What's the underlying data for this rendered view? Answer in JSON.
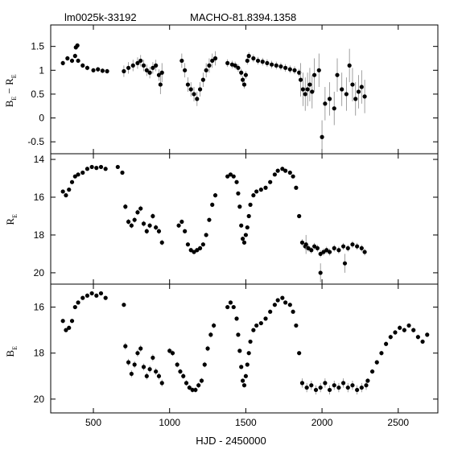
{
  "header": {
    "left_id": "lm0025k-33192",
    "right_id": "MACHO-81.8394.1358"
  },
  "chart_data": [
    {
      "type": "scatter",
      "panel": "color",
      "ylabel_main": "B",
      "ylabel_sub": "E",
      "ylabel_mid": " − R",
      "ylabel_sub2": "E",
      "xlim": [
        220,
        2760
      ],
      "ylim": [
        -0.75,
        1.95
      ],
      "inverted": false,
      "yticks": [
        -0.5,
        0,
        0.5,
        1,
        1.5
      ],
      "ytick_labels": [
        "-0.5",
        "0",
        "0.5",
        "1",
        "1.5"
      ],
      "segments": [
        {
          "x": [
            300,
            330,
            360,
            380,
            400,
            430,
            460,
            500,
            530,
            560,
            590
          ],
          "y": [
            1.15,
            1.25,
            1.2,
            1.3,
            1.2,
            1.1,
            1.05,
            1.0,
            1.02,
            0.99,
            0.98
          ],
          "err": 0.05
        },
        {
          "x": [
            385,
            395
          ],
          "y": [
            1.48,
            1.52
          ],
          "err": 0.04
        },
        {
          "x": [
            700,
            730,
            760,
            790,
            810,
            830,
            850,
            870,
            890,
            910,
            930
          ],
          "y": [
            0.98,
            1.05,
            1.1,
            1.15,
            1.2,
            1.1,
            1.0,
            0.95,
            1.05,
            1.1,
            0.9
          ],
          "err": 0.12
        },
        {
          "x": [
            940,
            950
          ],
          "y": [
            0.7,
            0.95
          ],
          "err": 0.2
        },
        {
          "x": [
            1080,
            1100,
            1120,
            1140,
            1160,
            1180,
            1200,
            1220,
            1240,
            1260,
            1280,
            1300
          ],
          "y": [
            1.2,
            1.0,
            0.7,
            0.6,
            0.5,
            0.4,
            0.6,
            0.8,
            1.0,
            1.1,
            1.2,
            1.25
          ],
          "err": 0.15
        },
        {
          "x": [
            1380,
            1410,
            1430,
            1450,
            1470,
            1480,
            1490,
            1500,
            1510,
            1520,
            1550,
            1580,
            1610,
            1640,
            1670,
            1700,
            1730,
            1760,
            1790,
            1820,
            1850
          ],
          "y": [
            1.15,
            1.12,
            1.1,
            1.05,
            0.95,
            0.8,
            0.7,
            0.9,
            1.2,
            1.3,
            1.25,
            1.2,
            1.18,
            1.15,
            1.12,
            1.1,
            1.08,
            1.05,
            1.02,
            1.0,
            0.95
          ],
          "err": 0.08
        },
        {
          "x": [
            1860,
            1875,
            1890,
            1905,
            1920,
            1935,
            1950,
            1980,
            2000,
            2020,
            2050,
            2080,
            2100,
            2130,
            2160,
            2180,
            2200,
            2220,
            2240,
            2260,
            2280
          ],
          "y": [
            0.8,
            0.6,
            0.5,
            0.6,
            0.7,
            0.55,
            0.9,
            1.0,
            -0.4,
            0.3,
            0.4,
            0.2,
            0.9,
            0.6,
            0.5,
            1.1,
            0.7,
            0.4,
            0.55,
            0.65,
            0.45
          ],
          "err": 0.35
        }
      ]
    },
    {
      "type": "scatter",
      "panel": "R",
      "ylabel_main": "R",
      "ylabel_sub": "E",
      "xlim": [
        220,
        2760
      ],
      "ylim": [
        13.7,
        20.6
      ],
      "inverted": true,
      "yticks": [
        14,
        16,
        18,
        20
      ],
      "ytick_labels": [
        "14",
        "16",
        "18",
        "20"
      ],
      "segments": [
        {
          "x": [
            300,
            320,
            340,
            360,
            380,
            400,
            430,
            460,
            490,
            520,
            550,
            580
          ],
          "y": [
            15.7,
            15.9,
            15.6,
            15.2,
            14.9,
            14.8,
            14.7,
            14.5,
            14.4,
            14.45,
            14.4,
            14.5
          ],
          "err": 0.08
        },
        {
          "x": [
            660,
            690
          ],
          "y": [
            14.4,
            14.7
          ],
          "err": 0.08
        },
        {
          "x": [
            710,
            730,
            750,
            770,
            790,
            810,
            830,
            850,
            870,
            890,
            910,
            930,
            950
          ],
          "y": [
            16.5,
            17.3,
            17.5,
            17.2,
            16.8,
            16.6,
            17.4,
            17.8,
            17.5,
            17.0,
            17.6,
            17.8,
            18.4
          ],
          "err": 0.15
        },
        {
          "x": [
            1060,
            1080,
            1100,
            1120,
            1140,
            1160,
            1180,
            1200,
            1220,
            1240,
            1260,
            1280,
            1300
          ],
          "y": [
            17.5,
            17.3,
            17.8,
            18.5,
            18.8,
            18.9,
            18.8,
            18.7,
            18.5,
            18.0,
            17.2,
            16.4,
            15.9
          ],
          "err": 0.12
        },
        {
          "x": [
            1380,
            1400,
            1420,
            1440,
            1450,
            1460,
            1470,
            1480,
            1490,
            1500,
            1510,
            1520,
            1530,
            1550,
            1570,
            1600,
            1630,
            1660,
            1690,
            1710,
            1740,
            1760,
            1790,
            1810,
            1830,
            1850
          ],
          "y": [
            14.9,
            14.8,
            14.9,
            15.2,
            15.8,
            16.5,
            17.5,
            18.2,
            18.4,
            18.0,
            17.6,
            17.0,
            16.4,
            15.9,
            15.7,
            15.6,
            15.5,
            15.2,
            14.8,
            14.6,
            14.5,
            14.6,
            14.7,
            14.9,
            15.5,
            17.0
          ],
          "err": 0.08
        },
        {
          "x": [
            1870,
            1890,
            1910,
            1930,
            1950,
            1970,
            1990,
            2010,
            2030,
            2050,
            2080,
            2110,
            2140,
            2170,
            2200,
            2230,
            2260,
            2280
          ],
          "y": [
            18.4,
            18.6,
            18.7,
            18.8,
            18.6,
            18.7,
            19.0,
            18.9,
            18.8,
            18.9,
            18.7,
            18.8,
            18.6,
            18.7,
            18.5,
            18.6,
            18.7,
            18.9
          ],
          "err": 0.18
        },
        {
          "x": [
            1895,
            1990,
            2150
          ],
          "y": [
            18.5,
            20.0,
            19.5
          ],
          "err": 0.5
        }
      ]
    },
    {
      "type": "scatter",
      "panel": "B",
      "ylabel_main": "B",
      "ylabel_sub": "E",
      "xlim": [
        220,
        2760
      ],
      "ylim": [
        15.0,
        20.6
      ],
      "inverted": true,
      "yticks": [
        16,
        18,
        20
      ],
      "ytick_labels": [
        "16",
        "18",
        "20"
      ],
      "xticks": [
        500,
        1000,
        1500,
        2000,
        2500
      ],
      "xtick_labels": [
        "500",
        "1000",
        "1500",
        "2000",
        "2500"
      ],
      "xlabel": "HJD - 2450000",
      "segments": [
        {
          "x": [
            300,
            320,
            340,
            360,
            380,
            400,
            430,
            460,
            490,
            520,
            550,
            580
          ],
          "y": [
            16.6,
            17.0,
            16.9,
            16.6,
            16.0,
            15.8,
            15.6,
            15.5,
            15.4,
            15.5,
            15.4,
            15.6
          ],
          "err": 0.08
        },
        {
          "x": [
            700
          ],
          "y": [
            15.9
          ],
          "err": 0.08
        },
        {
          "x": [
            710,
            730,
            750,
            770,
            790,
            810,
            830,
            850,
            870,
            890,
            910,
            930,
            950
          ],
          "y": [
            17.7,
            18.4,
            18.9,
            18.5,
            18.0,
            17.8,
            18.6,
            19.0,
            18.7,
            18.2,
            18.8,
            19.0,
            19.3
          ],
          "err": 0.15
        },
        {
          "x": [
            1000,
            1020,
            1050,
            1070,
            1090,
            1110,
            1130,
            1150,
            1170,
            1190,
            1210,
            1230,
            1250,
            1270,
            1290
          ],
          "y": [
            17.9,
            18.0,
            18.5,
            18.8,
            19.0,
            19.3,
            19.5,
            19.6,
            19.6,
            19.4,
            19.2,
            18.5,
            17.8,
            17.2,
            16.8
          ],
          "err": 0.12
        },
        {
          "x": [
            1380,
            1400,
            1420,
            1440,
            1450,
            1460,
            1470,
            1480,
            1490,
            1500,
            1510,
            1520,
            1530,
            1550,
            1570,
            1600,
            1630,
            1660,
            1690,
            1710,
            1740,
            1760,
            1790,
            1810,
            1830,
            1850
          ],
          "y": [
            16.0,
            15.8,
            16.0,
            16.5,
            17.2,
            17.9,
            18.6,
            19.2,
            19.4,
            19.0,
            18.5,
            18.0,
            17.5,
            17.0,
            16.8,
            16.7,
            16.5,
            16.2,
            15.9,
            15.7,
            15.6,
            15.8,
            15.9,
            16.2,
            16.8,
            18.0
          ],
          "err": 0.08
        },
        {
          "x": [
            1870,
            1900,
            1930,
            1960,
            1990,
            2020,
            2050,
            2080,
            2110,
            2140,
            2170,
            2200,
            2230,
            2260,
            2290
          ],
          "y": [
            19.3,
            19.5,
            19.4,
            19.6,
            19.5,
            19.3,
            19.6,
            19.4,
            19.5,
            19.3,
            19.5,
            19.4,
            19.6,
            19.5,
            19.4
          ],
          "err": 0.2
        },
        {
          "x": [
            2300,
            2330,
            2360,
            2390,
            2420,
            2450,
            2480,
            2510,
            2540,
            2570,
            2600,
            2630,
            2660,
            2690
          ],
          "y": [
            19.2,
            18.8,
            18.4,
            18.0,
            17.6,
            17.3,
            17.1,
            16.9,
            17.0,
            16.8,
            17.0,
            17.3,
            17.5,
            17.2
          ],
          "err": 0.1
        }
      ]
    }
  ]
}
